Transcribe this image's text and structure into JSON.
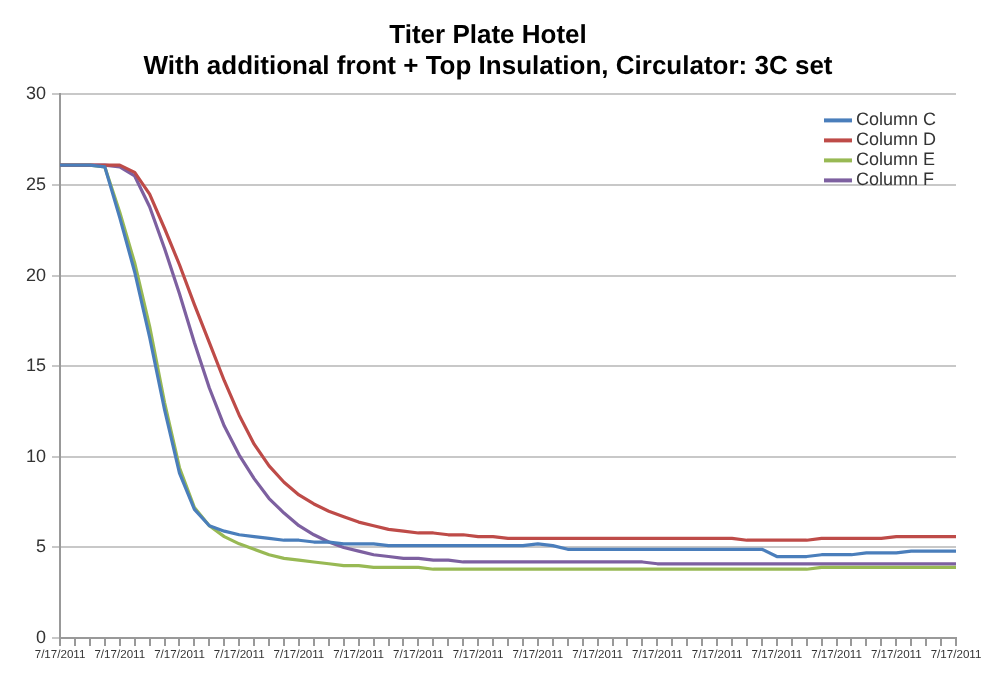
{
  "chart_data": {
    "type": "line",
    "title": [
      "Titer Plate Hotel",
      "With additional front + Top Insulation, Circulator: 3C set"
    ],
    "categories": [
      "7/17/2011",
      null,
      null,
      null,
      "7/17/2011",
      null,
      null,
      null,
      "7/17/2011",
      null,
      null,
      null,
      "7/17/2011",
      null,
      null,
      null,
      "7/17/2011",
      null,
      null,
      null,
      "7/17/2011",
      null,
      null,
      null,
      "7/17/2011",
      null,
      null,
      null,
      "7/17/2011",
      null,
      null,
      null,
      "7/17/2011",
      null,
      null,
      null,
      "7/17/2011",
      null,
      null,
      null,
      "7/17/2011",
      null,
      null,
      null,
      "7/17/2011",
      null,
      null,
      null,
      "7/17/2011",
      null,
      null,
      null,
      "7/17/2011",
      null,
      null,
      null,
      "7/17/2011",
      null,
      null,
      null,
      "7/17/2011"
    ],
    "series": [
      {
        "name": "Column C",
        "color": "#4a7ebb",
        "values": [
          26.1,
          26.1,
          26.1,
          26.0,
          23.2,
          20.2,
          16.6,
          12.6,
          9.1,
          7.1,
          6.2,
          5.9,
          5.7,
          5.6,
          5.5,
          5.4,
          5.4,
          5.3,
          5.3,
          5.2,
          5.2,
          5.2,
          5.1,
          5.1,
          5.1,
          5.1,
          5.1,
          5.1,
          5.1,
          5.1,
          5.1,
          5.1,
          5.2,
          5.1,
          4.9,
          4.9,
          4.9,
          4.9,
          4.9,
          4.9,
          4.9,
          4.9,
          4.9,
          4.9,
          4.9,
          4.9,
          4.9,
          4.9,
          4.5,
          4.5,
          4.5,
          4.6,
          4.6,
          4.6,
          4.7,
          4.7,
          4.7,
          4.8,
          4.8,
          4.8,
          4.8
        ]
      },
      {
        "name": "Column D",
        "color": "#be4b48",
        "values": [
          26.1,
          26.1,
          26.1,
          26.1,
          26.1,
          25.7,
          24.5,
          22.6,
          20.6,
          18.4,
          16.3,
          14.2,
          12.3,
          10.7,
          9.5,
          8.6,
          7.9,
          7.4,
          7.0,
          6.7,
          6.4,
          6.2,
          6.0,
          5.9,
          5.8,
          5.8,
          5.7,
          5.7,
          5.6,
          5.6,
          5.5,
          5.5,
          5.5,
          5.5,
          5.5,
          5.5,
          5.5,
          5.5,
          5.5,
          5.5,
          5.5,
          5.5,
          5.5,
          5.5,
          5.5,
          5.5,
          5.4,
          5.4,
          5.4,
          5.4,
          5.4,
          5.5,
          5.5,
          5.5,
          5.5,
          5.5,
          5.6,
          5.6,
          5.6,
          5.6,
          5.6
        ]
      },
      {
        "name": "Column E",
        "color": "#98b954",
        "values": [
          26.1,
          26.1,
          26.1,
          26.0,
          23.5,
          20.7,
          17.2,
          13.0,
          9.4,
          7.2,
          6.2,
          5.6,
          5.2,
          4.9,
          4.6,
          4.4,
          4.3,
          4.2,
          4.1,
          4.0,
          4.0,
          3.9,
          3.9,
          3.9,
          3.9,
          3.8,
          3.8,
          3.8,
          3.8,
          3.8,
          3.8,
          3.8,
          3.8,
          3.8,
          3.8,
          3.8,
          3.8,
          3.8,
          3.8,
          3.8,
          3.8,
          3.8,
          3.8,
          3.8,
          3.8,
          3.8,
          3.8,
          3.8,
          3.8,
          3.8,
          3.8,
          3.9,
          3.9,
          3.9,
          3.9,
          3.9,
          3.9,
          3.9,
          3.9,
          3.9,
          3.9
        ]
      },
      {
        "name": "Column F",
        "color": "#7d60a0",
        "values": [
          26.1,
          26.1,
          26.1,
          26.1,
          26.0,
          25.5,
          23.8,
          21.5,
          19.0,
          16.3,
          13.8,
          11.7,
          10.1,
          8.8,
          7.7,
          6.9,
          6.2,
          5.7,
          5.3,
          5.0,
          4.8,
          4.6,
          4.5,
          4.4,
          4.4,
          4.3,
          4.3,
          4.2,
          4.2,
          4.2,
          4.2,
          4.2,
          4.2,
          4.2,
          4.2,
          4.2,
          4.2,
          4.2,
          4.2,
          4.2,
          4.1,
          4.1,
          4.1,
          4.1,
          4.1,
          4.1,
          4.1,
          4.1,
          4.1,
          4.1,
          4.1,
          4.1,
          4.1,
          4.1,
          4.1,
          4.1,
          4.1,
          4.1,
          4.1,
          4.1,
          4.1
        ]
      }
    ],
    "ylim": [
      0,
      30
    ],
    "yticks": [
      0,
      5,
      10,
      15,
      20,
      25,
      30
    ],
    "grid": "y",
    "legend": "top right",
    "marker": "none",
    "line_style": "solid"
  }
}
